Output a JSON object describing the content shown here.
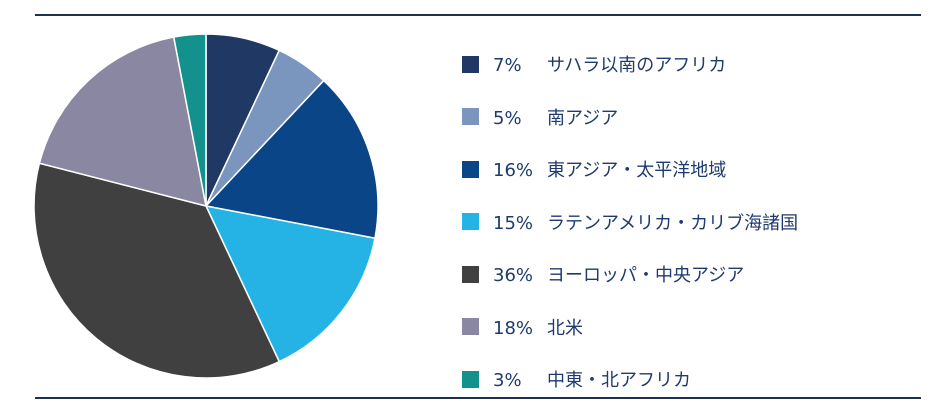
{
  "chart_data": {
    "type": "pie",
    "title": "",
    "legend_position": "right",
    "slices": [
      {
        "label": "サハラ以南のアフリカ",
        "value": 7,
        "display": "7%",
        "color": "#1f3864"
      },
      {
        "label": "南アジア",
        "value": 5,
        "display": "5%",
        "color": "#7a96bf"
      },
      {
        "label": "東アジア・太平洋地域",
        "value": 16,
        "display": "16%",
        "color": "#0a4587"
      },
      {
        "label": "ラテンアメリカ・カリブ海諸国",
        "value": 15,
        "display": "15%",
        "color": "#24b3e4"
      },
      {
        "label": "ヨーロッパ・中央アジア",
        "value": 36,
        "display": "36%",
        "color": "#404040"
      },
      {
        "label": "北米",
        "value": 18,
        "display": "18%",
        "color": "#8a87a3"
      },
      {
        "label": "中東・北アフリカ",
        "value": 3,
        "display": "3%",
        "color": "#13918c"
      }
    ]
  }
}
